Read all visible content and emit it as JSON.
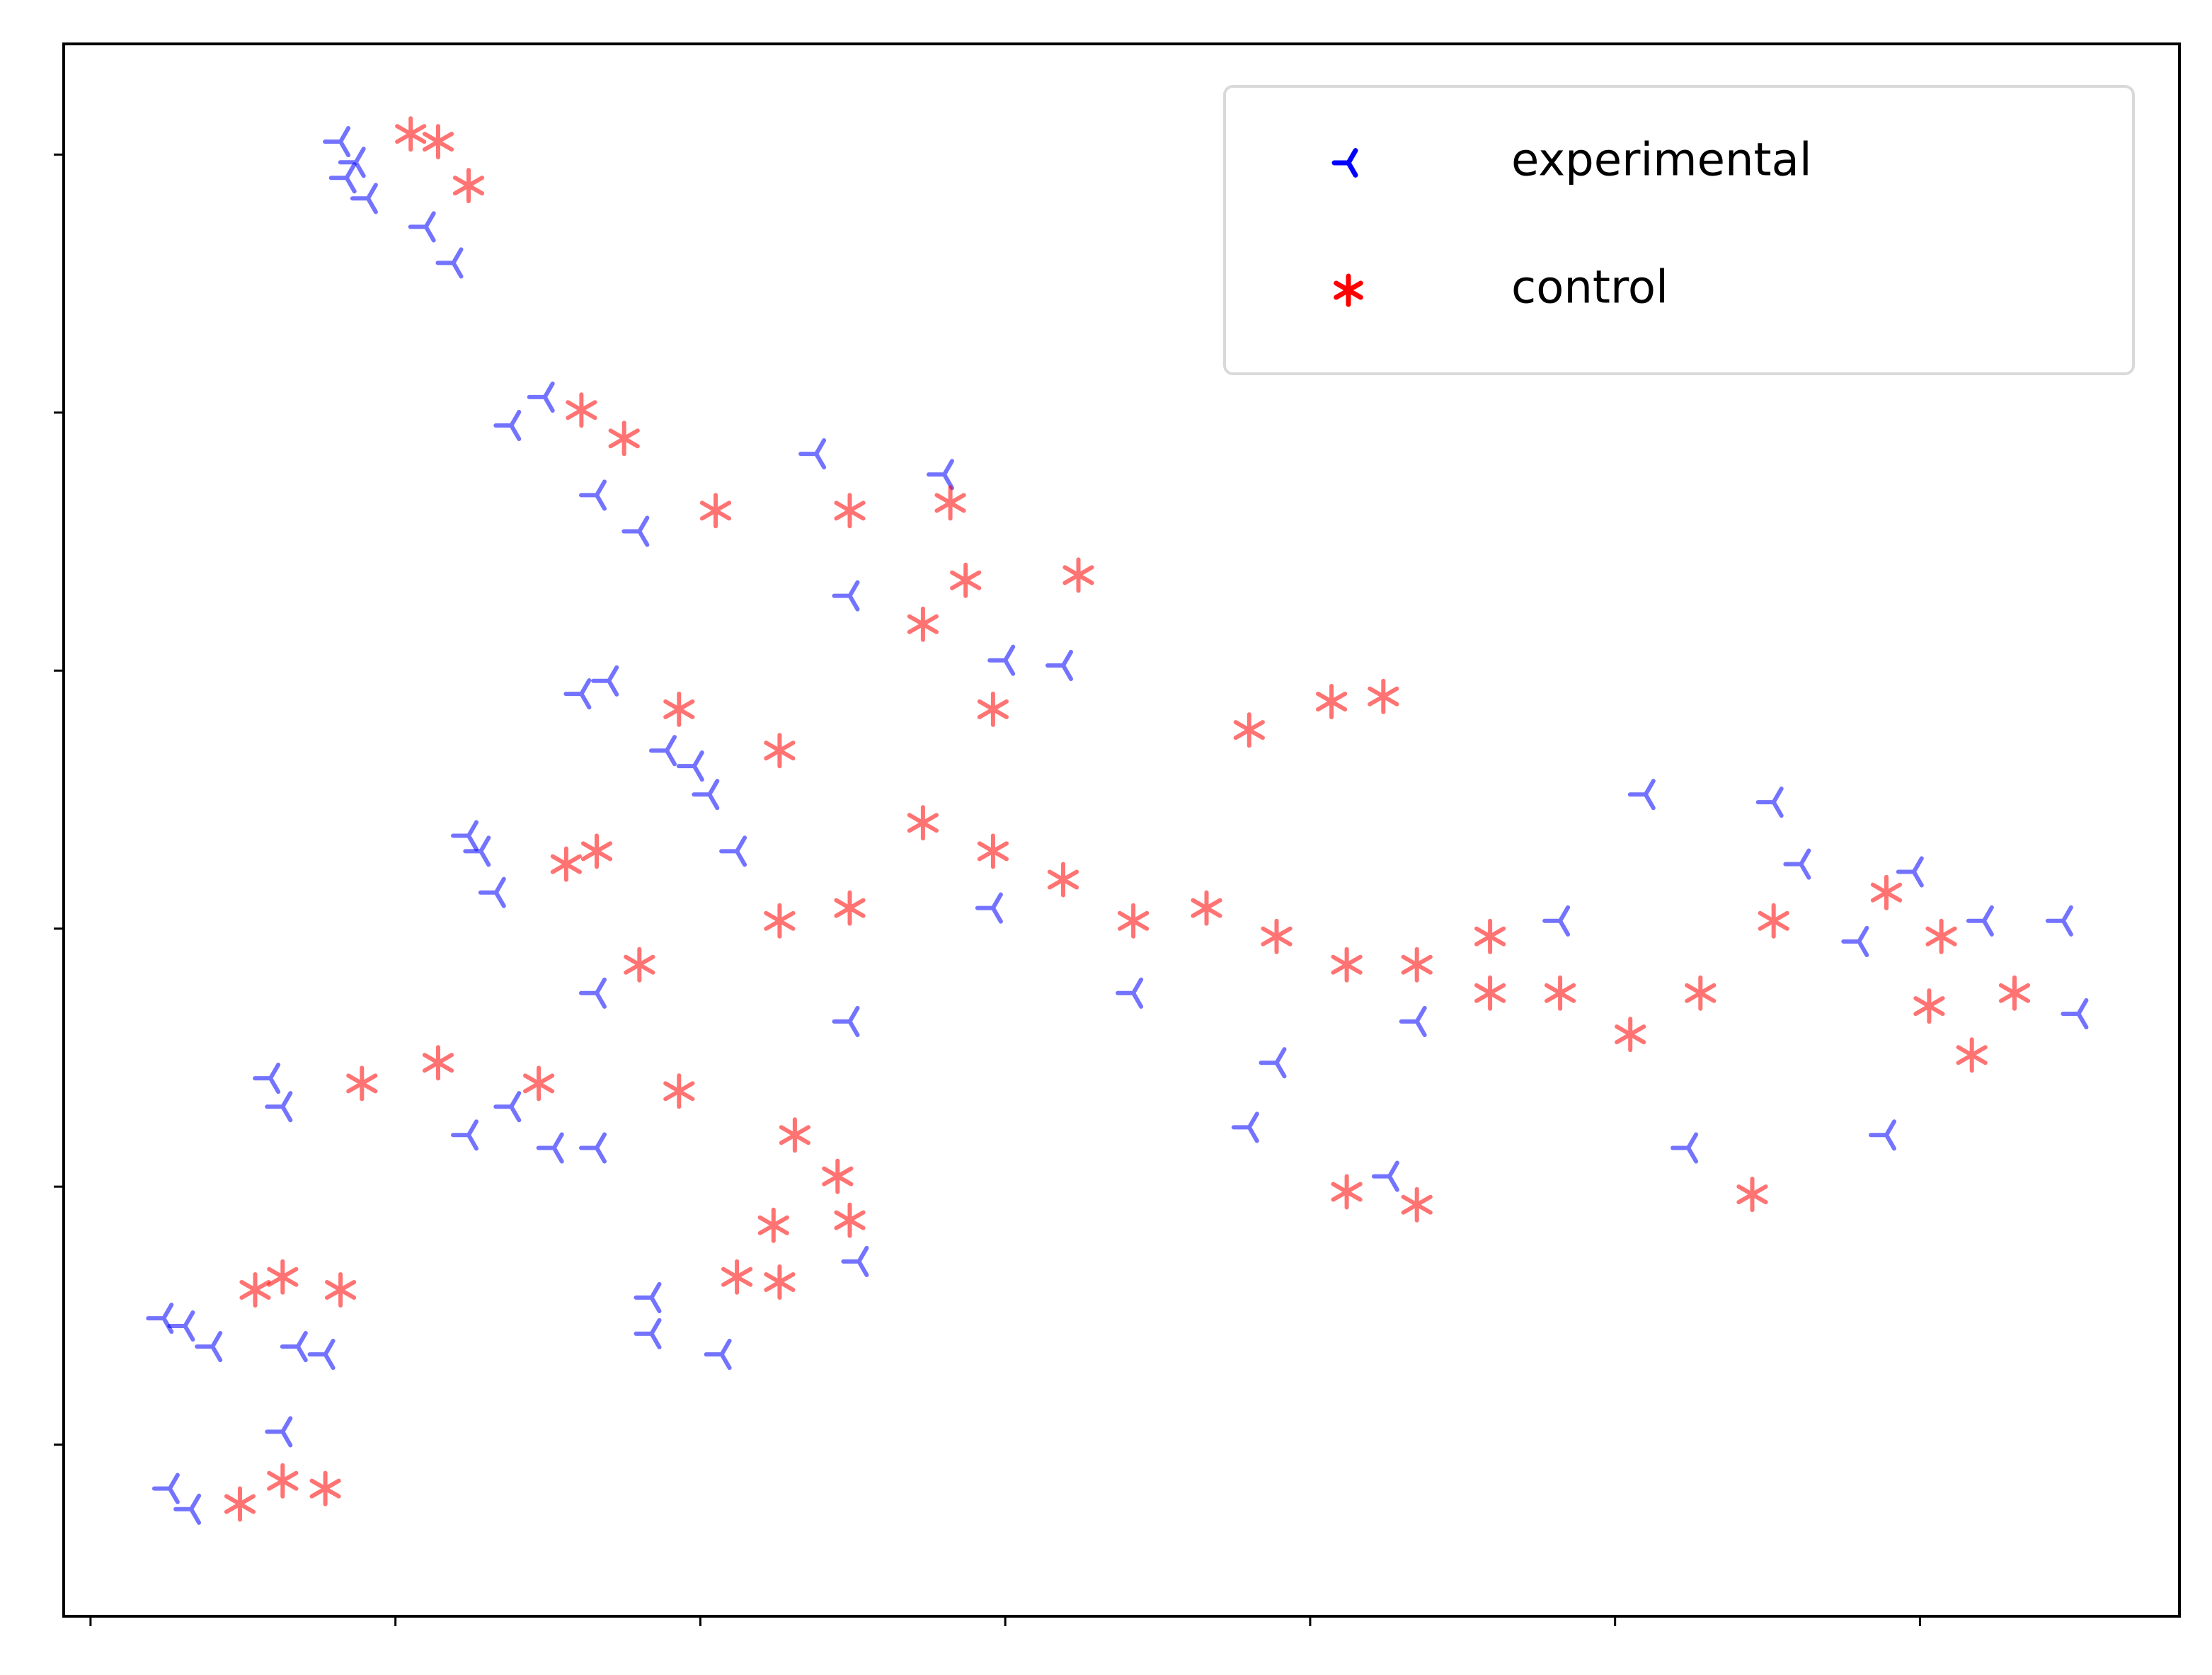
{
  "chart_data": {
    "type": "scatter",
    "xlim": [
      -0.088,
      6.851
    ],
    "ylim": [
      -0.665,
      5.429
    ],
    "xticks": [
      0,
      1,
      2,
      3,
      4,
      5,
      6
    ],
    "yticks": [
      0,
      1,
      2,
      3,
      4,
      5
    ],
    "legend": "upper right",
    "series": [
      {
        "name": "experimental",
        "color": "#0000ff",
        "marker": "tri_left",
        "x": [
          0.87,
          0.82,
          0.91,
          1.1,
          1.19,
          0.84,
          1.38,
          1.49,
          1.66,
          1.8,
          1.61,
          1.7,
          1.89,
          1.98,
          1.28,
          1.24,
          1.33,
          0.63,
          0.59,
          1.24,
          1.52,
          1.66,
          1.38,
          0.31,
          0.24,
          0.4,
          0.68,
          0.77,
          0.26,
          0.33,
          0.63,
          1.84,
          1.84,
          2.07,
          2.52,
          2.38,
          2.8,
          2.49,
          3.0,
          3.19,
          1.66,
          2.49,
          3.42,
          3.89,
          4.35,
          4.82,
          5.1,
          5.52,
          5.61,
          5.8,
          5.98,
          6.21,
          6.47,
          6.52,
          5.89,
          5.24,
          3.8,
          4.26,
          2.96,
          2.03,
          2.12
        ],
        "values": [
          4.97,
          5.05,
          4.83,
          4.72,
          4.58,
          4.91,
          3.95,
          4.06,
          3.68,
          3.54,
          2.91,
          2.96,
          2.69,
          2.63,
          2.3,
          2.36,
          2.14,
          1.31,
          1.42,
          1.2,
          1.15,
          1.15,
          1.31,
          0.46,
          0.49,
          0.38,
          0.38,
          0.35,
          -0.17,
          -0.25,
          0.05,
          0.57,
          0.43,
          0.35,
          0.71,
          3.84,
          3.76,
          3.29,
          3.04,
          3.02,
          1.75,
          1.64,
          1.75,
          1.48,
          1.64,
          2.03,
          2.52,
          2.49,
          2.25,
          1.95,
          2.22,
          2.03,
          2.03,
          1.67,
          1.2,
          1.15,
          1.23,
          1.04,
          2.08,
          2.52,
          2.3
        ]
      },
      {
        "name": "control",
        "color": "#ff0000",
        "marker": "asterisk",
        "x": [
          1.14,
          1.24,
          1.05,
          1.61,
          1.75,
          2.05,
          2.49,
          2.82,
          3.24,
          2.73,
          2.87,
          1.93,
          2.26,
          2.96,
          4.07,
          4.24,
          3.8,
          1.56,
          1.66,
          1.8,
          2.26,
          2.73,
          3.19,
          3.66,
          4.12,
          4.59,
          4.82,
          5.05,
          5.28,
          5.52,
          5.89,
          6.07,
          6.03,
          6.31,
          6.17,
          5.45,
          4.35,
          4.12,
          0.89,
          1.14,
          1.47,
          1.93,
          2.31,
          2.45,
          2.49,
          2.24,
          2.26,
          2.12,
          0.63,
          0.54,
          0.82,
          0.49,
          0.63,
          0.77,
          2.96,
          3.42,
          3.89,
          4.35,
          4.59,
          2.49
        ],
        "values": [
          5.05,
          4.88,
          5.08,
          4.01,
          3.9,
          3.62,
          3.62,
          3.65,
          3.37,
          3.18,
          3.35,
          2.85,
          2.69,
          2.85,
          2.88,
          2.9,
          2.77,
          2.25,
          2.3,
          1.86,
          2.03,
          2.41,
          2.19,
          2.08,
          1.86,
          1.97,
          1.75,
          1.59,
          1.75,
          2.03,
          2.14,
          1.97,
          1.7,
          1.75,
          1.51,
          0.97,
          0.93,
          0.98,
          1.4,
          1.48,
          1.4,
          1.37,
          1.2,
          1.04,
          0.87,
          0.85,
          0.63,
          0.65,
          0.65,
          0.6,
          0.6,
          -0.23,
          -0.14,
          -0.17,
          2.3,
          2.03,
          1.97,
          1.86,
          1.75,
          2.08
        ]
      }
    ]
  }
}
